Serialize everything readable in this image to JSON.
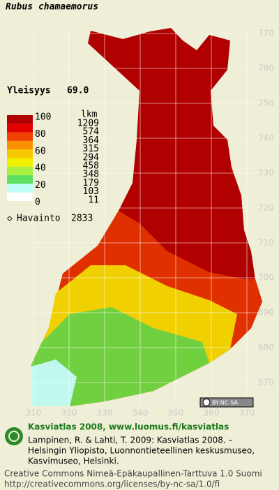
{
  "title": "Rubus chamaemorus",
  "frequency": {
    "label": "Yleisyys",
    "value": "69.0"
  },
  "legend": {
    "scale": [
      100,
      80,
      60,
      40,
      20,
      0
    ],
    "count_header": "lkm",
    "counts": [
      1209,
      574,
      364,
      315,
      294,
      458,
      348,
      179,
      103,
      11
    ]
  },
  "observations": {
    "label": "Havainto",
    "value": 2833
  },
  "grid": {
    "y_labels": [
      770,
      760,
      750,
      740,
      730,
      720,
      710,
      700,
      690,
      680,
      670
    ],
    "x_labels": [
      310,
      320,
      330,
      340,
      350,
      360,
      370
    ]
  },
  "license_badge": "BY-NC-SA",
  "footer": {
    "heading": "Kasviatlas 2008, www.luomus.fi/kasviatlas",
    "citation": [
      "Lampinen, R. & Lahti, T. 2009: Kasviatlas 2008. –",
      "Helsingin Yliopisto, Luonnontieteellinen keskusmuseo,",
      "Kasvimuseo, Helsinki."
    ],
    "license": [
      "Creative Commons Nimeä-Epäkaupallinen-Tarttuva 1.0 Suomi",
      "http://creativecommons.org/licenses/by-nc-sa/1.0/fi"
    ]
  }
}
